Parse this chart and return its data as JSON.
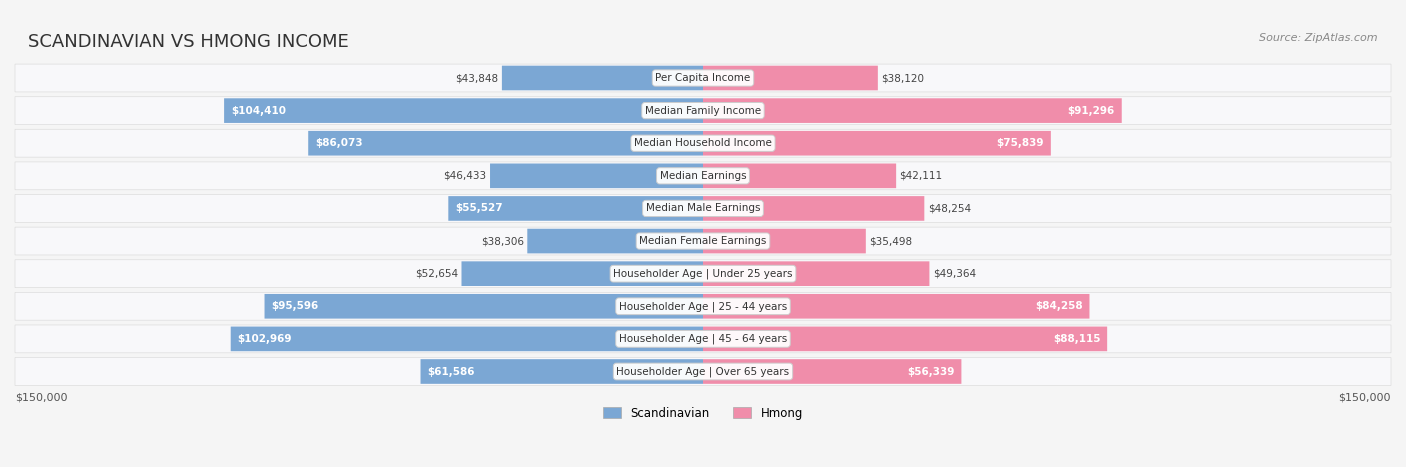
{
  "title": "SCANDINAVIAN VS HMONG INCOME",
  "source": "Source: ZipAtlas.com",
  "categories": [
    "Per Capita Income",
    "Median Family Income",
    "Median Household Income",
    "Median Earnings",
    "Median Male Earnings",
    "Median Female Earnings",
    "Householder Age | Under 25 years",
    "Householder Age | 25 - 44 years",
    "Householder Age | 45 - 64 years",
    "Householder Age | Over 65 years"
  ],
  "scandinavian": [
    43848,
    104410,
    86073,
    46433,
    55527,
    38306,
    52654,
    95596,
    102969,
    61586
  ],
  "hmong": [
    38120,
    91296,
    75839,
    42111,
    48254,
    35498,
    49364,
    84258,
    88115,
    56339
  ],
  "max_val": 150000,
  "scand_color": "#7BA7D4",
  "hmong_color": "#F08DAA",
  "scand_color_dark": "#5B8DBF",
  "hmong_color_dark": "#E8698C",
  "bg_color": "#f5f5f5",
  "row_bg": "#ffffff",
  "label_bg": "#f0f0f0",
  "title_color": "#333333",
  "bar_label_dark": "#333333",
  "bar_label_light": "#ffffff"
}
